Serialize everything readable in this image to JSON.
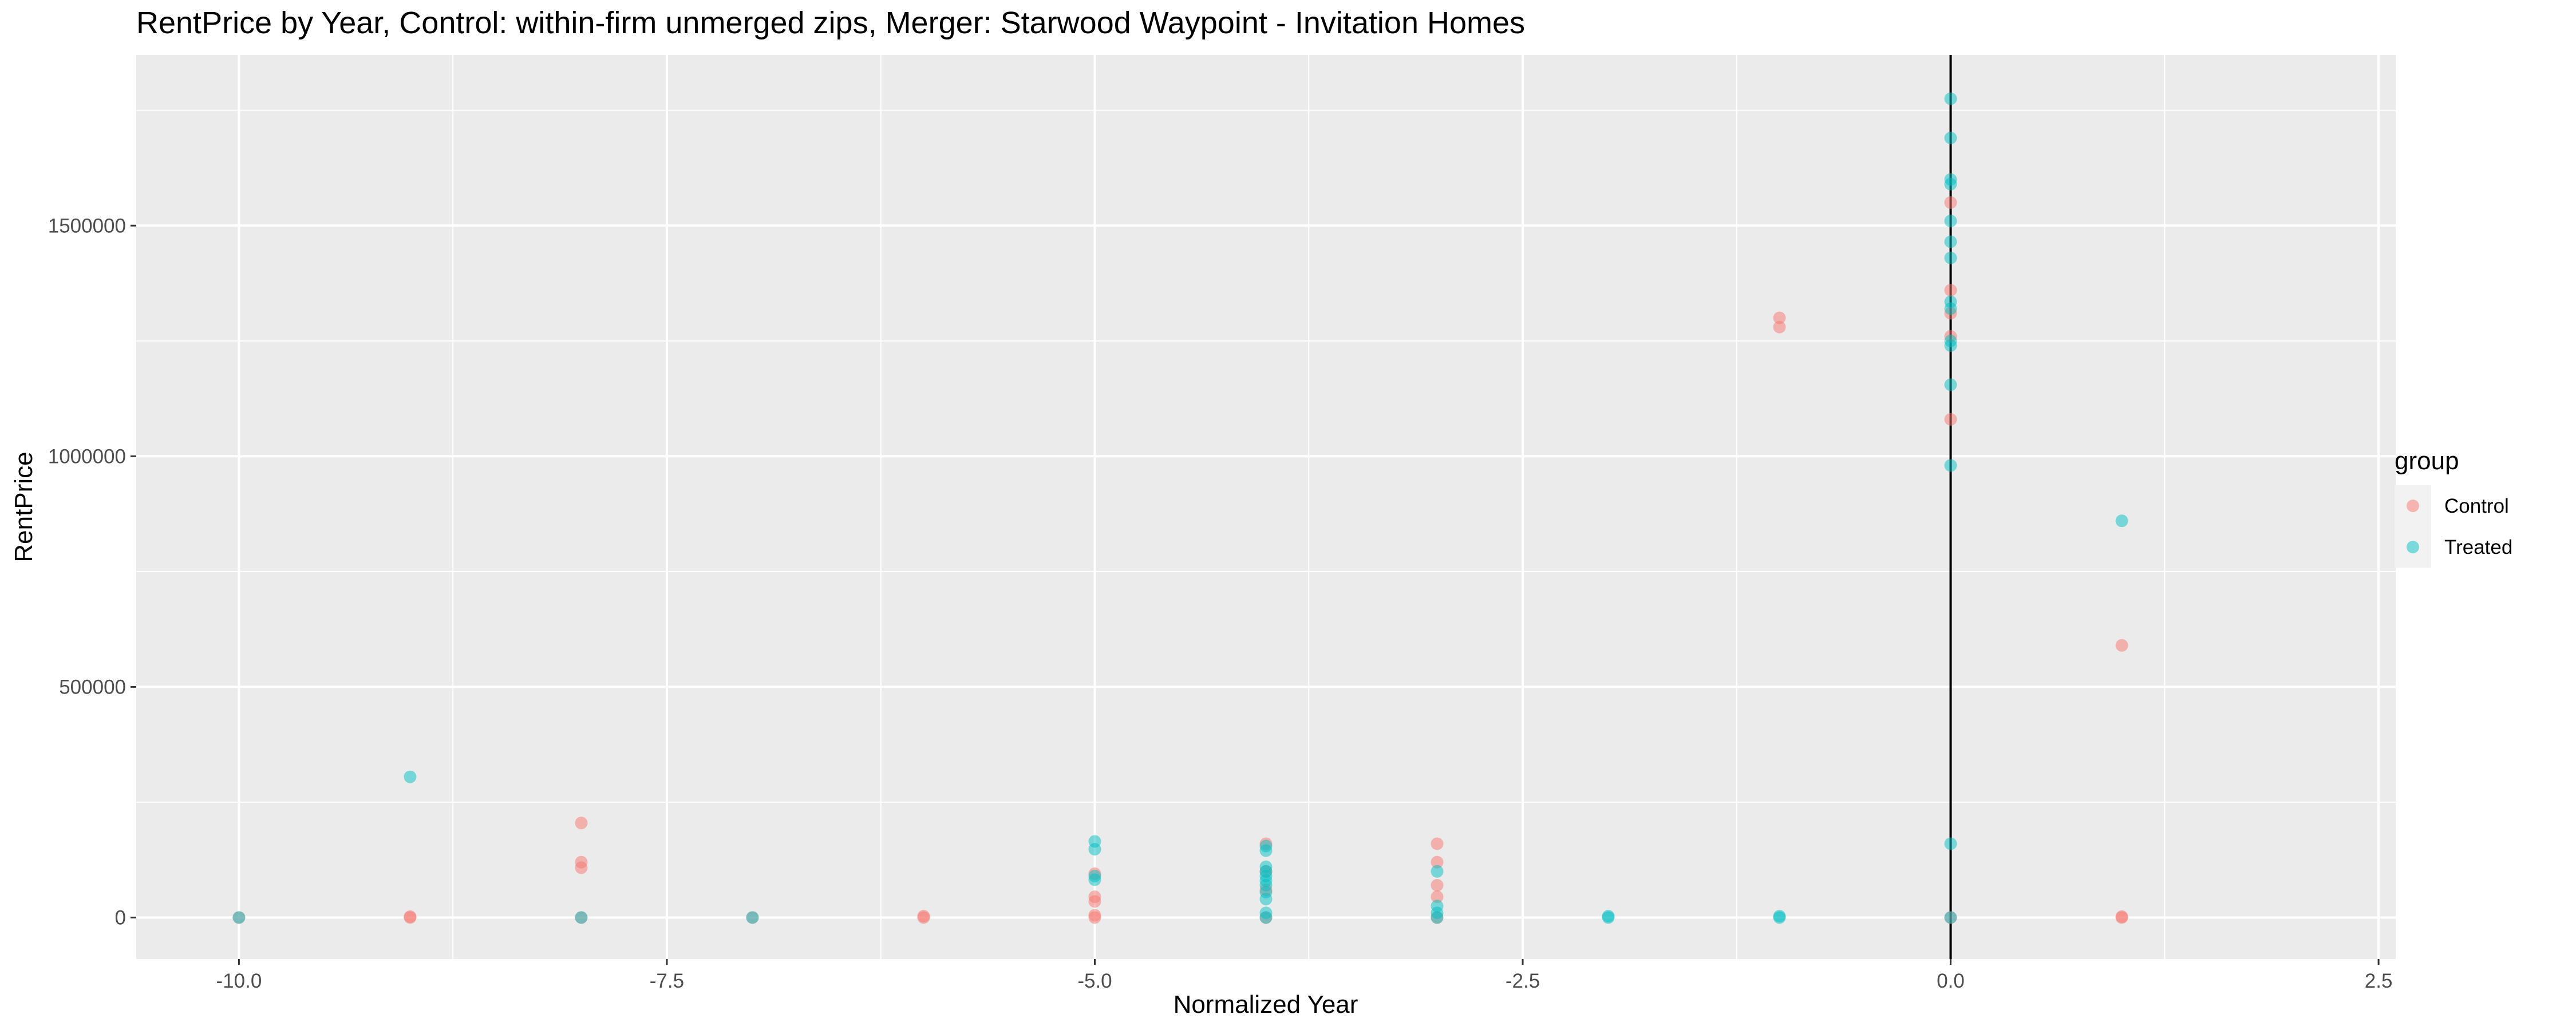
{
  "chart_data": {
    "type": "scatter",
    "title": "RentPrice by Year, Control: within-firm unmerged zips, Merger: Starwood Waypoint - Invitation Homes",
    "xlabel": "Normalized Year",
    "ylabel": "RentPrice",
    "xlim": [
      -10.6,
      2.6
    ],
    "ylim": [
      -90000,
      1870000
    ],
    "x_ticks": [
      -10.0,
      -7.5,
      -5.0,
      -2.5,
      0.0,
      2.5
    ],
    "x_tick_labels": [
      "-10.0",
      "-7.5",
      "-5.0",
      "-2.5",
      "0.0",
      "2.5"
    ],
    "y_ticks": [
      0,
      500000,
      1000000,
      1500000
    ],
    "y_tick_labels": [
      "0",
      "500000",
      "1000000",
      "1500000"
    ],
    "vline_x": 0,
    "grid": true,
    "legend": {
      "title": "group",
      "position": "right",
      "entries": [
        {
          "label": "Control",
          "color": "#F8766D"
        },
        {
          "label": "Treated",
          "color": "#00BFC4"
        }
      ]
    },
    "series": [
      {
        "name": "Control",
        "color": "#F8766D",
        "points": [
          {
            "x": -10,
            "y": 0
          },
          {
            "x": -9,
            "y": 0
          },
          {
            "x": -9,
            "y": 2000
          },
          {
            "x": -8,
            "y": 205000
          },
          {
            "x": -8,
            "y": 120000
          },
          {
            "x": -8,
            "y": 108000
          },
          {
            "x": -8,
            "y": 0
          },
          {
            "x": -7,
            "y": 0
          },
          {
            "x": -6,
            "y": 0
          },
          {
            "x": -6,
            "y": 3000
          },
          {
            "x": -5,
            "y": 95000
          },
          {
            "x": -5,
            "y": 45000
          },
          {
            "x": -5,
            "y": 35000
          },
          {
            "x": -5,
            "y": 0
          },
          {
            "x": -5,
            "y": 5000
          },
          {
            "x": -4,
            "y": 160000
          },
          {
            "x": -4,
            "y": 100000
          },
          {
            "x": -4,
            "y": 60000
          },
          {
            "x": -4,
            "y": 0
          },
          {
            "x": -3,
            "y": 160000
          },
          {
            "x": -3,
            "y": 120000
          },
          {
            "x": -3,
            "y": 70000
          },
          {
            "x": -3,
            "y": 45000
          },
          {
            "x": -3,
            "y": 0
          },
          {
            "x": -1,
            "y": 1300000
          },
          {
            "x": -1,
            "y": 1280000
          },
          {
            "x": 0,
            "y": 1550000
          },
          {
            "x": 0,
            "y": 1360000
          },
          {
            "x": 0,
            "y": 1310000
          },
          {
            "x": 0,
            "y": 1260000
          },
          {
            "x": 0,
            "y": 1080000
          },
          {
            "x": 0,
            "y": 0
          },
          {
            "x": 1,
            "y": 590000
          },
          {
            "x": 1,
            "y": 0
          },
          {
            "x": 1,
            "y": 2000
          }
        ]
      },
      {
        "name": "Treated",
        "color": "#00BFC4",
        "points": [
          {
            "x": -10,
            "y": 0
          },
          {
            "x": -9,
            "y": 305000
          },
          {
            "x": -8,
            "y": 0
          },
          {
            "x": -7,
            "y": 0
          },
          {
            "x": -5,
            "y": 165000
          },
          {
            "x": -5,
            "y": 148000
          },
          {
            "x": -5,
            "y": 90000
          },
          {
            "x": -5,
            "y": 82000
          },
          {
            "x": -4,
            "y": 155000
          },
          {
            "x": -4,
            "y": 145000
          },
          {
            "x": -4,
            "y": 110000
          },
          {
            "x": -4,
            "y": 100000
          },
          {
            "x": -4,
            "y": 90000
          },
          {
            "x": -4,
            "y": 80000
          },
          {
            "x": -4,
            "y": 70000
          },
          {
            "x": -4,
            "y": 55000
          },
          {
            "x": -4,
            "y": 40000
          },
          {
            "x": -4,
            "y": 10000
          },
          {
            "x": -4,
            "y": 0
          },
          {
            "x": -3,
            "y": 100000
          },
          {
            "x": -3,
            "y": 25000
          },
          {
            "x": -3,
            "y": 10000
          },
          {
            "x": -3,
            "y": 0
          },
          {
            "x": -2,
            "y": 0
          },
          {
            "x": -2,
            "y": 3000
          },
          {
            "x": -1,
            "y": 0
          },
          {
            "x": -1,
            "y": 3000
          },
          {
            "x": 0,
            "y": 1775000
          },
          {
            "x": 0,
            "y": 1690000
          },
          {
            "x": 0,
            "y": 1600000
          },
          {
            "x": 0,
            "y": 1590000
          },
          {
            "x": 0,
            "y": 1510000
          },
          {
            "x": 0,
            "y": 1465000
          },
          {
            "x": 0,
            "y": 1430000
          },
          {
            "x": 0,
            "y": 1335000
          },
          {
            "x": 0,
            "y": 1320000
          },
          {
            "x": 0,
            "y": 1250000
          },
          {
            "x": 0,
            "y": 1240000
          },
          {
            "x": 0,
            "y": 1155000
          },
          {
            "x": 0,
            "y": 980000
          },
          {
            "x": 0,
            "y": 160000
          },
          {
            "x": 0,
            "y": 0
          },
          {
            "x": 1,
            "y": 860000
          }
        ]
      }
    ]
  }
}
